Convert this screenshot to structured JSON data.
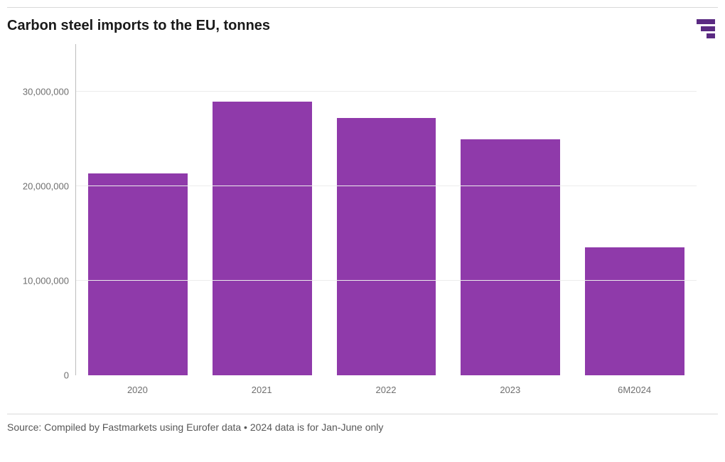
{
  "chart": {
    "type": "bar",
    "title": "Carbon steel imports to the EU, tonnes",
    "categories": [
      "2020",
      "2021",
      "2022",
      "2023",
      "6M2024"
    ],
    "values": [
      21300000,
      28900000,
      27200000,
      24900000,
      13500000
    ],
    "bar_color": "#8f3aaa",
    "ylim": [
      0,
      35000000
    ],
    "yticks": [
      0,
      10000000,
      20000000,
      30000000
    ],
    "ytick_labels": [
      "0",
      "10,000,000",
      "20,000,000",
      "30,000,000"
    ],
    "gridline_ticks": [
      10000000,
      20000000,
      30000000
    ],
    "gridline_color": "#ececec",
    "axis_line_color": "#bdbdbd",
    "tick_label_color": "#6f6f6f",
    "tick_fontsize": 13,
    "title_fontsize": 20,
    "title_fontweight": 700,
    "bar_width_ratio": 0.8,
    "background_color": "#ffffff"
  },
  "logo": {
    "name": "fastmarkets-logo",
    "bars": [
      {
        "w": 26,
        "h": 7,
        "color": "#5a2a82"
      },
      {
        "w": 20,
        "h": 7,
        "color": "#5a2a82"
      },
      {
        "w": 12,
        "h": 7,
        "color": "#5a2a82"
      }
    ],
    "gap": 3
  },
  "source_line": "Source: Compiled by Fastmarkets using Eurofer data • 2024 data is for Jan-June only"
}
